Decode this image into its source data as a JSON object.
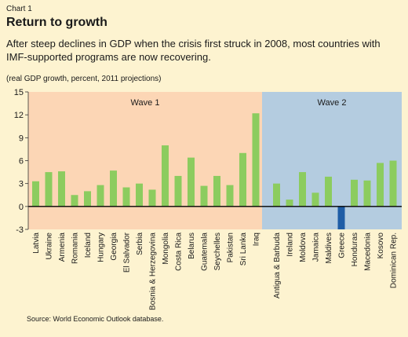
{
  "chart_label": "Chart 1",
  "title": "Return to growth",
  "subtitle": "After steep declines in GDP when the crisis first struck in 2008, most countries with IMF-supported programs are now recovering.",
  "note": "(real GDP growth, percent, 2011 projections)",
  "source": "Source: World Economic Outlook database.",
  "colors": {
    "wave1_bg": "#fcd6b5",
    "wave2_bg": "#b4cce0",
    "bar_positive": "#8ccc5f",
    "bar_negative": "#1f5da6",
    "page_bg": "#fdf3d0"
  },
  "chart_data": {
    "type": "bar",
    "ylim": [
      -3,
      15
    ],
    "yticks": [
      -3,
      0,
      3,
      6,
      9,
      12,
      15
    ],
    "grid": false,
    "groups": [
      {
        "name": "Wave 1",
        "categories": [
          "Latvia",
          "Ukraine",
          "Armenia",
          "Romania",
          "Iceland",
          "Hungary",
          "Georgia",
          "El Salvador",
          "Serbia",
          "Bosnia & Herzegovina",
          "Mongolia",
          "Costa Rica",
          "Belarus",
          "Guatemala",
          "Seychelles",
          "Pakistan",
          "Sri Lanka",
          "Iraq"
        ],
        "values": [
          3.3,
          4.5,
          4.6,
          1.5,
          2.0,
          2.8,
          4.7,
          2.5,
          3.0,
          2.2,
          8.0,
          4.0,
          6.4,
          2.7,
          4.0,
          2.8,
          7.0,
          12.2
        ]
      },
      {
        "name": "Wave 2",
        "categories": [
          "Antigua & Barbuda",
          "Ireland",
          "Moldova",
          "Jamaica",
          "Maldives",
          "Greece",
          "Honduras",
          "Macedonia",
          "Kosovo",
          "Dominican Rep."
        ],
        "values": [
          3.0,
          0.9,
          4.5,
          1.8,
          3.9,
          -3.0,
          3.5,
          3.4,
          5.7,
          6.0
        ]
      }
    ]
  }
}
